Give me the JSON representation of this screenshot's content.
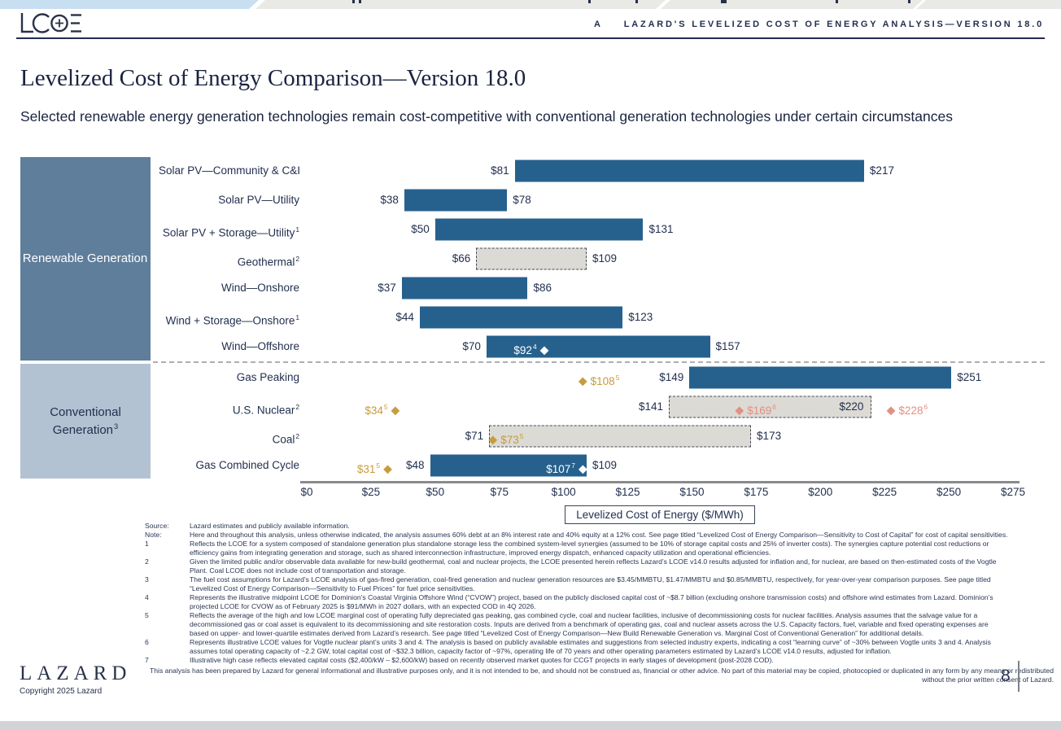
{
  "header": {
    "logo_name": "LCOE logo",
    "eyebrow_letter": "A",
    "eyebrow_title": "LAZARD'S LEVELIZED COST OF ENERGY ANALYSIS—VERSION 18.0"
  },
  "title": "Levelized Cost of Energy Comparison—Version 18.0",
  "subtitle": "Selected renewable energy generation technologies remain cost-competitive with conventional generation technologies under certain circumstances",
  "palette": {
    "gold": "#C69C3F",
    "salmon": "#E28F84",
    "white": "#FFFFFF",
    "bar_blue": "#26618E",
    "renewable_box": "#5E7E9B",
    "conventional_box": "#B2C2D2",
    "dashed_bar_fill": "#DCDAD4",
    "navy": "#22304F"
  },
  "chart_data": {
    "type": "bar",
    "orientation": "horizontal",
    "title": "Levelized Cost of Energy ($/MWh)",
    "axis": {
      "min": 0,
      "max": 275,
      "step": 25,
      "tick_prefix": "$",
      "title": "Levelized Cost of Energy ($/MWh)"
    },
    "groups": [
      {
        "label": "Renewable Generation",
        "sup": ""
      },
      {
        "label": "Conventional Generation",
        "sup": "3"
      }
    ],
    "rows": [
      {
        "label": "Solar PV—Community & C&I",
        "sup": "",
        "low": 81,
        "high": 217,
        "low_label": "$81",
        "high_label": "$217",
        "bar_style": "solid",
        "high_label_pos": "outside",
        "markers": []
      },
      {
        "label": "Solar PV—Utility",
        "sup": "",
        "low": 38,
        "high": 78,
        "low_label": "$38",
        "high_label": "$78",
        "bar_style": "solid",
        "high_label_pos": "outside",
        "markers": []
      },
      {
        "label": "Solar PV + Storage—Utility",
        "sup": "1",
        "low": 50,
        "high": 131,
        "low_label": "$50",
        "high_label": "$131",
        "bar_style": "solid",
        "high_label_pos": "outside",
        "markers": []
      },
      {
        "label": "Geothermal",
        "sup": "2",
        "low": 66,
        "high": 109,
        "low_label": "$66",
        "high_label": "$109",
        "bar_style": "dashed",
        "high_label_pos": "outside",
        "markers": []
      },
      {
        "label": "Wind—Onshore",
        "sup": "",
        "low": 37,
        "high": 86,
        "low_label": "$37",
        "high_label": "$86",
        "bar_style": "solid",
        "high_label_pos": "outside",
        "markers": []
      },
      {
        "label": "Wind + Storage—Onshore",
        "sup": "1",
        "low": 44,
        "high": 123,
        "low_label": "$44",
        "high_label": "$123",
        "bar_style": "solid",
        "high_label_pos": "outside",
        "markers": []
      },
      {
        "label": "Wind—Offshore",
        "sup": "",
        "low": 70,
        "high": 157,
        "low_label": "$70",
        "high_label": "$157",
        "bar_style": "solid",
        "high_label_pos": "outside",
        "markers": [
          {
            "value": 92,
            "label": "$92",
            "sup": "4",
            "color": "white",
            "text_side": "left"
          }
        ]
      },
      {
        "label": "Gas Peaking",
        "sup": "",
        "low": 149,
        "high": 251,
        "low_label": "$149",
        "high_label": "$251",
        "bar_style": "solid",
        "high_label_pos": "outside",
        "markers": [
          {
            "value": 108,
            "label": "$108",
            "sup": "5",
            "color": "gold",
            "text_side": "right"
          }
        ]
      },
      {
        "label": "U.S. Nuclear",
        "sup": "2",
        "low": 141,
        "high": 220,
        "low_label": "$141",
        "high_label": "$220",
        "bar_style": "dashed",
        "high_label_pos": "inside",
        "markers": [
          {
            "value": 34,
            "label": "$34",
            "sup": "5",
            "color": "gold",
            "text_side": "left"
          },
          {
            "value": 169,
            "label": "$169",
            "sup": "6",
            "color": "salmon",
            "text_side": "right"
          },
          {
            "value": 228,
            "label": "$228",
            "sup": "6",
            "color": "salmon",
            "text_side": "right"
          }
        ]
      },
      {
        "label": "Coal",
        "sup": "2",
        "low": 71,
        "high": 173,
        "low_label": "$71",
        "high_label": "$173",
        "bar_style": "dashed",
        "high_label_pos": "outside",
        "markers": [
          {
            "value": 73,
            "label": "$73",
            "sup": "5",
            "color": "gold",
            "text_side": "right"
          }
        ]
      },
      {
        "label": "Gas Combined Cycle",
        "sup": "",
        "low": 48,
        "high": 109,
        "low_label": "$48",
        "high_label": "$109",
        "bar_style": "solid",
        "high_label_pos": "outside",
        "markers": [
          {
            "value": 31,
            "label": "$31",
            "sup": "5",
            "color": "gold",
            "text_side": "left"
          },
          {
            "value": 107,
            "label": "$107",
            "sup": "7",
            "color": "white",
            "text_side": "left"
          }
        ]
      }
    ]
  },
  "footnotes": [
    {
      "tag": "Source:",
      "text": "Lazard estimates and publicly available information."
    },
    {
      "tag": "Note:",
      "text": "Here and throughout this analysis, unless otherwise indicated, the analysis assumes 60% debt at an 8% interest rate and 40% equity at a 12% cost. See page titled “Levelized Cost of Energy Comparison—Sensitivity to Cost of Capital” for cost of capital sensitivities."
    },
    {
      "tag": "1",
      "text": "Reflects the LCOE for a system composed of standalone generation plus standalone storage less the combined system-level synergies (assumed to be 10% of storage capital costs and 25% of inverter costs). The synergies capture potential cost reductions or efficiency gains from integrating generation and storage, such as shared interconnection infrastructure, improved energy dispatch, enhanced capacity utilization and operational efficiencies."
    },
    {
      "tag": "2",
      "text": "Given the limited public and/or observable data available for new-build geothermal, coal and nuclear projects, the LCOE presented herein reflects Lazard’s LCOE v14.0 results adjusted for inflation and, for nuclear, are based on then-estimated costs of the Vogtle Plant. Coal LCOE does not include cost of transportation and storage."
    },
    {
      "tag": "3",
      "text": "The fuel cost assumptions for Lazard’s LCOE analysis of gas-fired generation, coal-fired generation and nuclear generation resources are $3.45/MMBTU, $1.47/MMBTU and $0.85/MMBTU, respectively, for year-over-year comparison purposes. See page titled “Levelized Cost of Energy Comparison—Sensitivity to Fuel Prices” for fuel price sensitivities."
    },
    {
      "tag": "4",
      "text": "Represents the illustrative midpoint LCOE for Dominion’s Coastal Virginia Offshore Wind (“CVOW”) project, based on the publicly disclosed capital cost of ~$8.7 billion (excluding onshore transmission costs) and offshore wind estimates from Lazard. Dominion’s projected LCOE for CVOW as of February 2025 is $91/MWh in 2027 dollars, with an expected COD in 4Q 2026."
    },
    {
      "tag": "5",
      "text": "Reflects the average of the high and low LCOE marginal cost of operating fully depreciated gas peaking, gas combined cycle, coal and nuclear facilities, inclusive of decommissioning costs for nuclear facilities. Analysis assumes that the salvage value for a decommissioned gas or coal asset is equivalent to its decommissioning and site restoration costs. Inputs are derived from a benchmark of operating gas, coal and nuclear assets across the U.S. Capacity factors, fuel, variable and fixed operating expenses are based on upper- and lower-quartile estimates derived from Lazard’s research. See page titled “Levelized Cost of Energy Comparison—New Build Renewable Generation vs. Marginal Cost of Conventional Generation” for additional details."
    },
    {
      "tag": "6",
      "text": "Represents illustrative LCOE values for Vogtle nuclear plant’s units 3 and 4. The analysis is based on publicly available estimates and suggestions from selected industry experts, indicating a cost “learning curve” of ~30% between Vogtle units 3 and 4. Analysis assumes total operating capacity of ~2.2 GW, total capital cost of ~$32.3 billion, capacity factor of ~97%, operating life of 70 years and other operating parameters estimated by Lazard’s LCOE v14.0 results, adjusted for inflation."
    },
    {
      "tag": "7",
      "text": "Illustrative high case reflects elevated capital costs ($2,400/kW – $2,600/kW) based on recently observed market quotes for CCGT projects in early stages of development (post-2028 COD)."
    }
  ],
  "disclaimer": "This analysis has been prepared by Lazard for general informational and illustrative purposes only, and it is not intended to be, and should not be construed as, financial or other advice. No part of this material may be copied, photocopied or duplicated in any form by any means or redistributed without the prior written consent of Lazard.",
  "footer": {
    "logo": "LAZARD",
    "copyright": "Copyright 2025 Lazard",
    "page": "8"
  }
}
